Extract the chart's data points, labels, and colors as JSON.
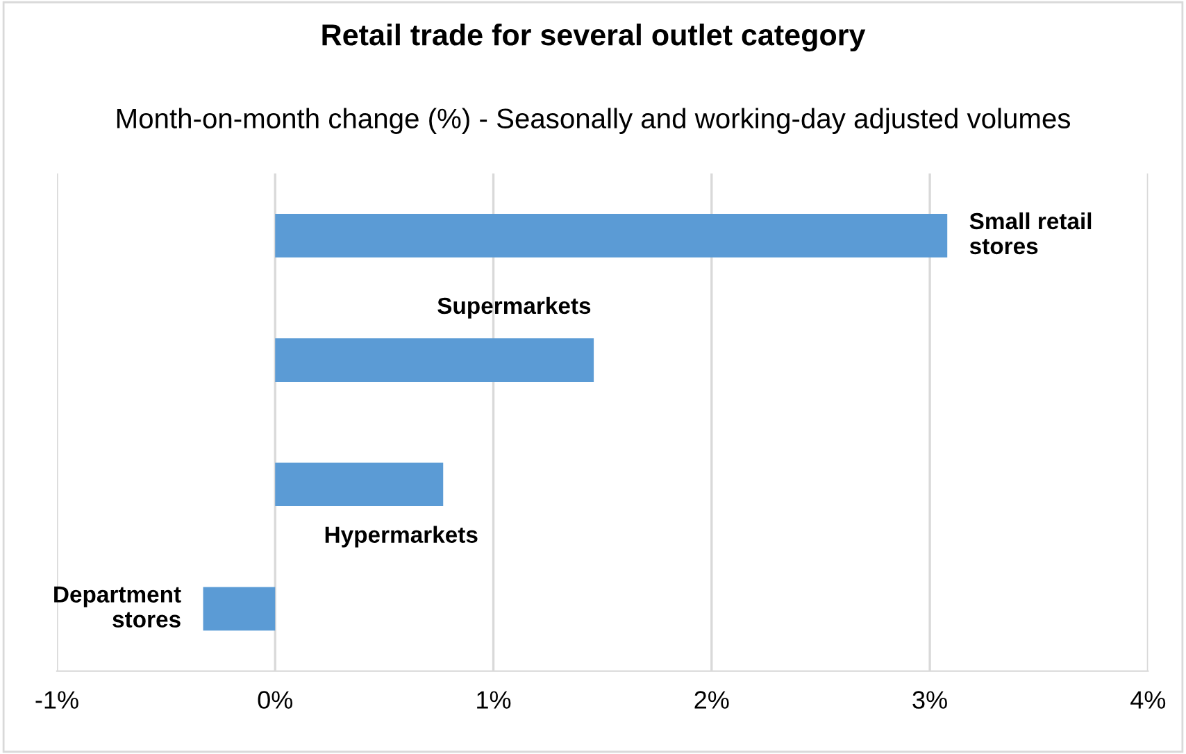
{
  "chart_data": {
    "type": "bar",
    "orientation": "horizontal",
    "title": "Retail trade for several outlet category",
    "subtitle": "Month-on-month change (%) - Seasonally and working-day adjusted volumes",
    "categories": [
      "Small retail\nstores",
      "Supermarkets",
      "Hypermarkets",
      "Department\nstores"
    ],
    "values": [
      3.08,
      1.46,
      0.77,
      -0.33
    ],
    "color": "#5b9bd5",
    "xlim": [
      -1,
      4
    ],
    "xticks": [
      {
        "value": -1,
        "label": "-1%"
      },
      {
        "value": 0,
        "label": "0%"
      },
      {
        "value": 1,
        "label": "1%"
      },
      {
        "value": 2,
        "label": "2%"
      },
      {
        "value": 3,
        "label": "3%"
      },
      {
        "value": 4,
        "label": "4%"
      }
    ],
    "grid": "x",
    "legend": false
  }
}
